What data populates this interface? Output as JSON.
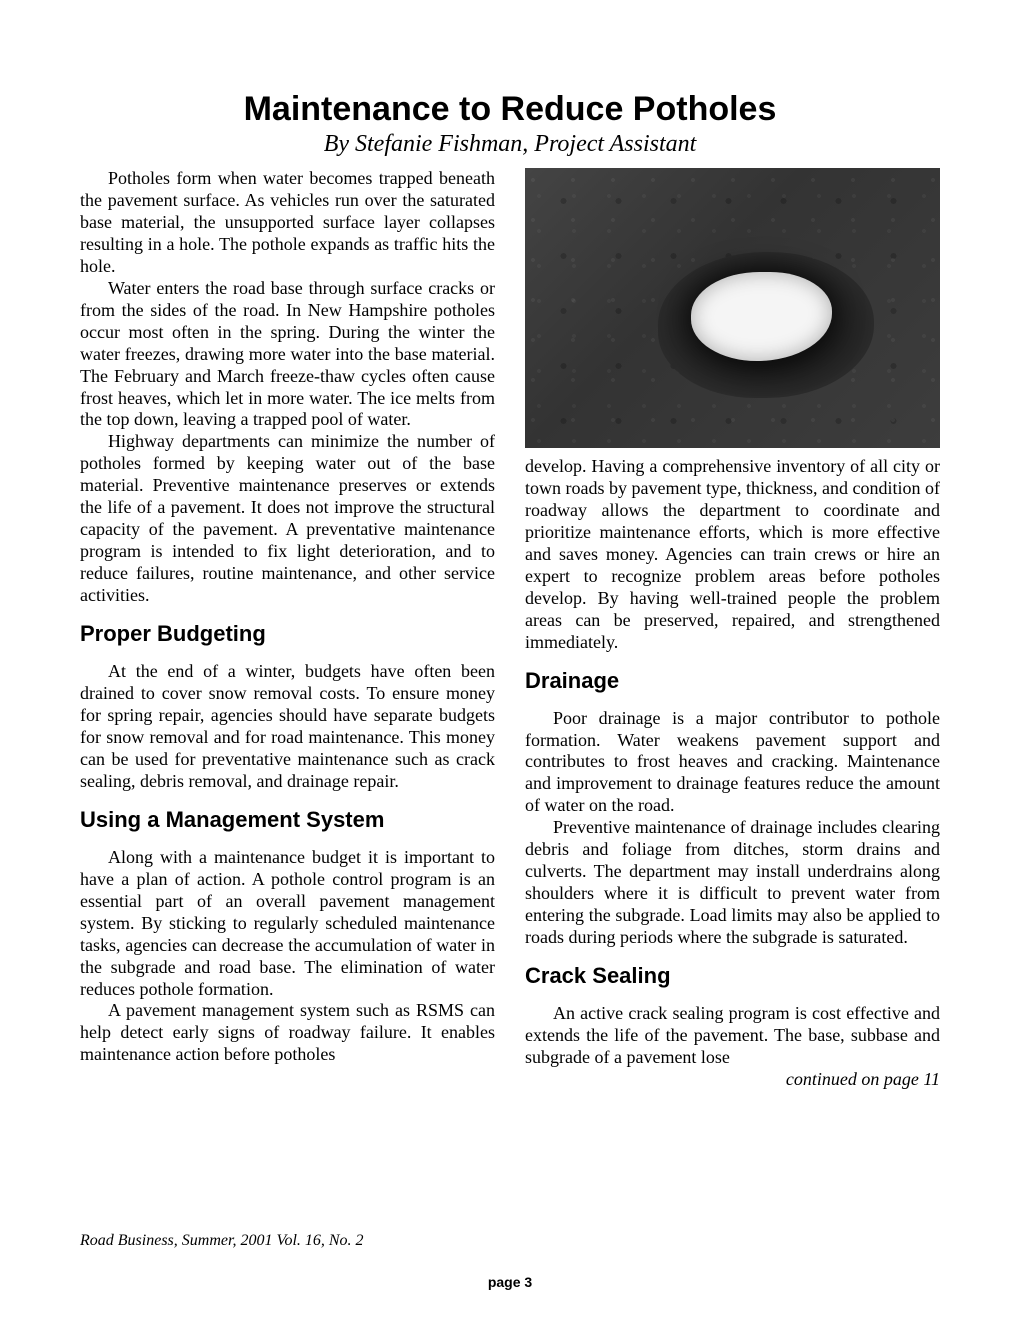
{
  "title": "Maintenance to Reduce Potholes",
  "byline": "By Stefanie Fishman, Project Assistant",
  "paragraphs_left": [
    "Potholes form when water becomes trapped beneath the pavement surface. As vehicles run over the saturated base material, the unsupported surface layer collapses resulting in a hole. The pothole expands as traffic hits the hole.",
    "Water enters the road base through surface cracks or from the sides of the road. In New Hampshire potholes occur most often in the spring. During the winter the water freezes, drawing more water into the base material. The February and March freeze-thaw cycles often cause frost heaves, which let in more water. The ice melts from the top down, leaving a trapped pool of water.",
    "Highway departments can minimize the number of potholes formed by keeping water out of the base material. Preventive maintenance preserves or extends the life of a pavement. It does not improve the structural capacity of the pavement. A preventative maintenance program is intended to fix light deterioration, and to reduce failures, routine maintenance, and other service activities."
  ],
  "sections_left": [
    {
      "heading": "Proper Budgeting",
      "paragraphs": [
        "At the end of a winter, budgets have often been drained to cover snow removal costs. To ensure money for spring repair, agencies should have separate budgets for snow removal and for road maintenance. This money can be used for preventative maintenance such as crack sealing, debris removal, and drainage repair."
      ]
    },
    {
      "heading": "Using a Management System",
      "paragraphs": [
        "Along with a maintenance budget it is important to have a plan of action. A pothole control program is an essential part of an overall pavement management system. By sticking to regularly scheduled maintenance tasks, agencies can decrease the accumulation of water in the subgrade and road base. The elimination of water reduces pothole formation.",
        "A pavement management system such as RSMS can help detect early signs of roadway failure. It enables maintenance action before potholes"
      ]
    }
  ],
  "right_continuation": "develop. Having a comprehensive inventory of all city or town roads by pavement type, thickness, and condition of roadway allows the department to coordinate and prioritize maintenance efforts, which is more effective and saves money. Agencies can train crews or hire an expert to recognize problem areas before potholes develop. By having well-trained people the problem areas can be preserved, repaired, and strengthened immediately.",
  "sections_right": [
    {
      "heading": "Drainage",
      "paragraphs": [
        "Poor drainage is a major contributor to pothole formation. Water weakens pavement support and contributes to frost heaves and cracking. Maintenance and improvement to drainage features reduce the amount of water on the road.",
        "Preventive maintenance of drainage includes clearing debris and foliage from ditches, storm drains and culverts. The department may install underdrains along shoulders where it is difficult to prevent water from entering the subgrade. Load limits may also be applied to roads during periods where the subgrade is saturated."
      ]
    },
    {
      "heading": "Crack Sealing",
      "paragraphs": [
        "An active crack sealing program is cost effective and extends the life of the pavement. The base, subbase and subgrade of a pavement lose"
      ]
    }
  ],
  "continued_text": "continued on page 11",
  "footer_citation": "Road Business, Summer, 2001 Vol. 16, No. 2",
  "page_label": "page 3",
  "figure": {
    "alt": "pothole-photo",
    "background_color": "#3a3a3a",
    "hole_color": "#f5f5f5"
  },
  "style": {
    "title_fontsize": 34,
    "byline_fontsize": 24,
    "body_fontsize": 18,
    "heading_fontsize": 22,
    "text_color": "#000000",
    "background_color": "#ffffff",
    "column_gap": 30
  }
}
